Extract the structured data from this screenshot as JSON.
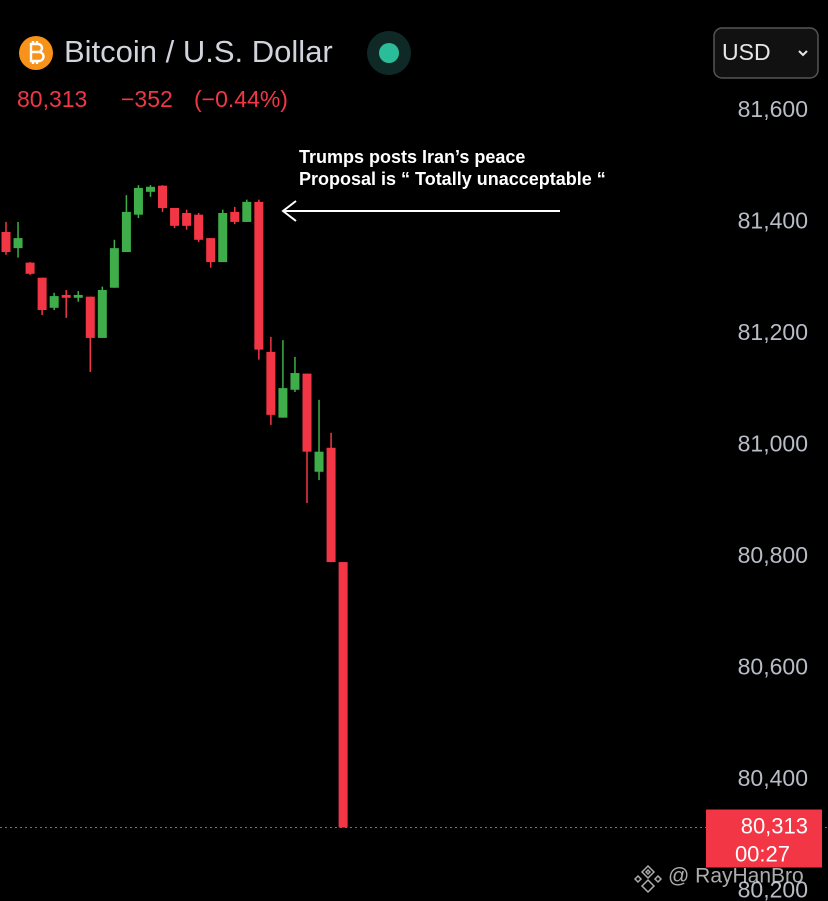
{
  "chart_data": {
    "type": "candlestick",
    "title": "Bitcoin / U.S. Dollar",
    "currency": "USD",
    "price": "80,313",
    "change": "−352",
    "change_percent": "(−0.44%)",
    "annotation": [
      "Trumps posts Iran’s peace",
      "Proposal is “ Totally unacceptable “"
    ],
    "last_price": {
      "value": 80313,
      "label": "80,313"
    },
    "countdown": "00:27",
    "watermark": "@ RayHanBro",
    "up_color": "#3fae4a",
    "down_color": "#f23645",
    "ylim": [
      80183,
      81797
    ],
    "yticks": [
      {
        "value": 80200,
        "label": "80,200"
      },
      {
        "value": 80400,
        "label": "80,400"
      },
      {
        "value": 80600,
        "label": "80,600"
      },
      {
        "value": 80800,
        "label": "80,800"
      },
      {
        "value": 81000,
        "label": "81,000"
      },
      {
        "value": 81200,
        "label": "81,200"
      },
      {
        "value": 81400,
        "label": "81,400"
      },
      {
        "value": 81600,
        "label": "81,600"
      }
    ],
    "open": [
      81381,
      81352,
      81326,
      81299,
      81245,
      81268,
      81263,
      81265,
      81191,
      81281,
      81345,
      81412,
      81453,
      81464,
      81424,
      81415,
      81412,
      81370,
      81327,
      81417,
      81399,
      81435,
      81166,
      81048,
      81098,
      81127,
      80951,
      80994,
      80789
    ],
    "high": [
      81399,
      81399,
      81327,
      81299,
      81272,
      81277,
      81275,
      81265,
      81283,
      81367,
      81447,
      81465,
      81465,
      81465,
      81424,
      81421,
      81415,
      81370,
      81421,
      81426,
      81439,
      81439,
      81193,
      81187,
      81157,
      81127,
      81080,
      81021,
      80789
    ],
    "low": [
      81340,
      81335,
      81304,
      81232,
      81241,
      81227,
      81256,
      81130,
      81191,
      81281,
      81345,
      81406,
      81444,
      81417,
      81388,
      81385,
      81363,
      81317,
      81327,
      81395,
      81399,
      81152,
      81035,
      81048,
      81094,
      80895,
      80936,
      80789,
      80313
    ],
    "close": [
      81345,
      81370,
      81306,
      81241,
      81266,
      81263,
      81268,
      81191,
      81277,
      81352,
      81417,
      81460,
      81462,
      81424,
      81392,
      81392,
      81367,
      81327,
      81415,
      81399,
      81435,
      81170,
      81053,
      81101,
      81128,
      80987,
      80987,
      80789,
      80313
    ]
  }
}
